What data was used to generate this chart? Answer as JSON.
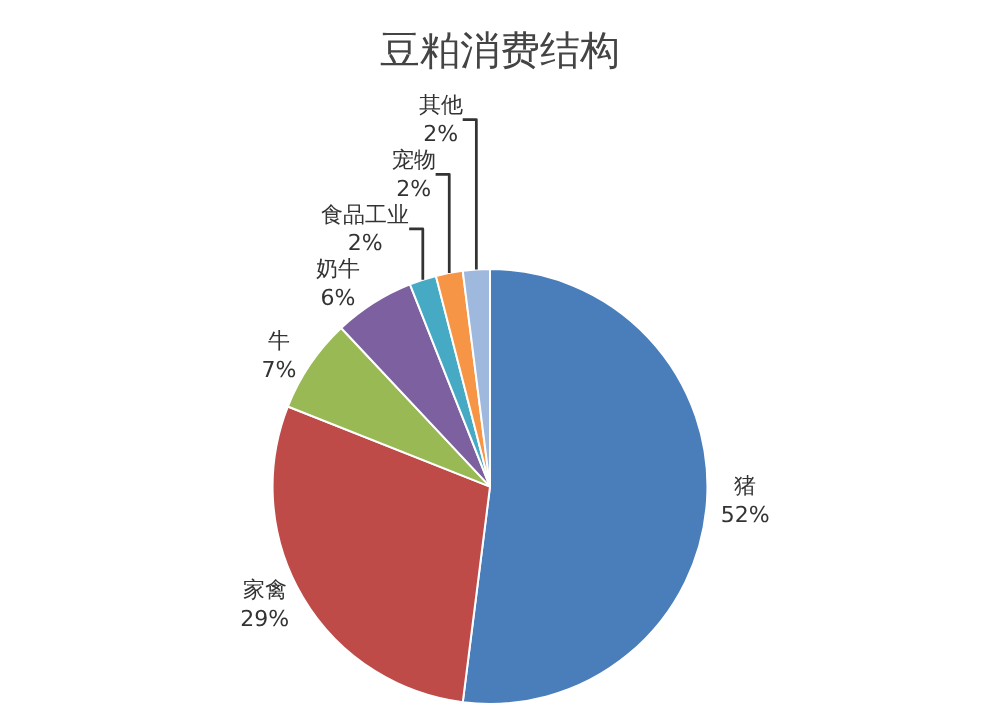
{
  "chart_data": {
    "type": "pie",
    "title": "豆粕消费结构",
    "categories": [
      "猪",
      "家禽",
      "牛",
      "奶牛",
      "食品工业",
      "宠物",
      "其他"
    ],
    "values": [
      52,
      29,
      7,
      6,
      2,
      2,
      2
    ],
    "colors": [
      "#4a7ebb",
      "#be4b48",
      "#98b954",
      "#7d60a0",
      "#46aac5",
      "#f69545",
      "#9fb8de"
    ],
    "value_labels": [
      "52%",
      "29%",
      "7%",
      "6%",
      "2%",
      "2%",
      "2%"
    ],
    "legend": false
  }
}
